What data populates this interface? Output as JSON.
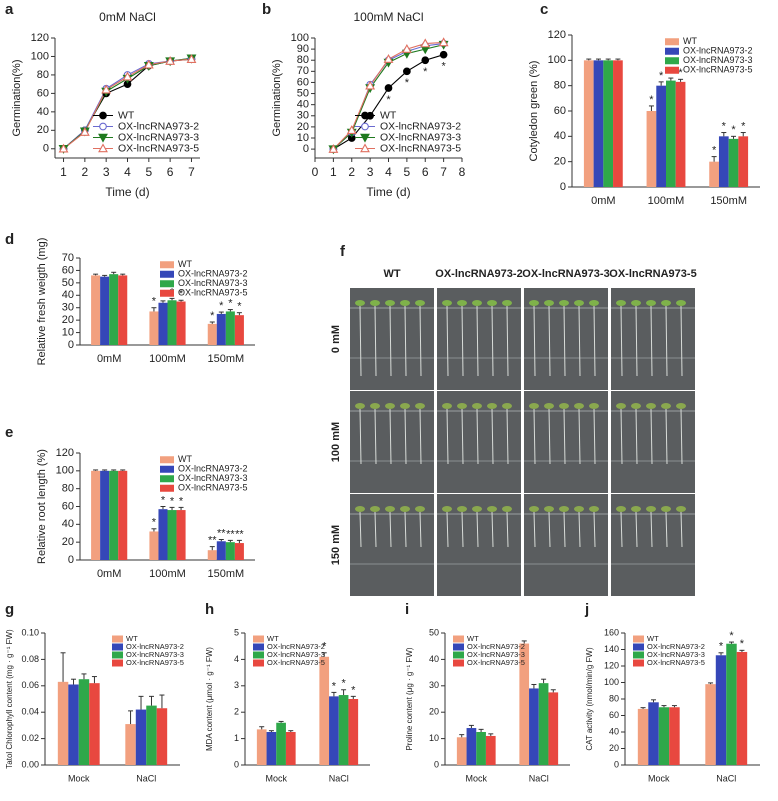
{
  "chart_data": [
    {
      "type": "line",
      "panel_label": "a",
      "title": "0mM NaCl",
      "xlabel": "Time (d)",
      "ylabel": "Germination(%)",
      "x": [
        1,
        2,
        3,
        4,
        5,
        6,
        7
      ],
      "xlim": [
        0.6,
        7.4
      ],
      "xticks": [
        1,
        2,
        3,
        4,
        5,
        6,
        7
      ],
      "ylim": [
        -10,
        120
      ],
      "yticks": [
        0,
        20,
        40,
        60,
        80,
        100,
        120
      ],
      "legend": "lower right",
      "series": [
        {
          "name": "WT",
          "color": "#000000",
          "marker": "circle-filled",
          "values": [
            0,
            20,
            60,
            70,
            90,
            95,
            97
          ]
        },
        {
          "name": "OX-lncRNA973-2",
          "color": "#6a6ad0",
          "marker": "circle-open",
          "values": [
            0,
            20,
            65,
            80,
            92,
            95,
            98
          ]
        },
        {
          "name": "OX-lncRNA973-3",
          "color": "#1f7a1f",
          "marker": "triangle-down-filled",
          "values": [
            0,
            19,
            62,
            76,
            90,
            95,
            98
          ]
        },
        {
          "name": "OX-lncRNA973-5",
          "color": "#e07060",
          "marker": "triangle-up-open",
          "values": [
            0,
            18,
            64,
            78,
            91,
            95,
            97
          ]
        }
      ]
    },
    {
      "type": "line",
      "panel_label": "b",
      "title": "100mM NaCl",
      "xlabel": "Time (d)",
      "ylabel": "Germination(%)",
      "x": [
        1,
        2,
        3,
        4,
        5,
        6,
        7
      ],
      "xlim": [
        0,
        8
      ],
      "xticks": [
        0,
        1,
        2,
        3,
        4,
        5,
        6,
        7,
        8
      ],
      "ylim": [
        -8,
        100
      ],
      "yticks": [
        0,
        10,
        20,
        30,
        40,
        50,
        60,
        70,
        80,
        90,
        100
      ],
      "legend": "lower right",
      "series": [
        {
          "name": "WT",
          "color": "#000000",
          "marker": "circle-filled",
          "values": [
            0,
            10,
            30,
            55,
            70,
            80,
            85
          ],
          "annotations": [
            null,
            null,
            null,
            "*",
            "*",
            "*",
            "*"
          ]
        },
        {
          "name": "OX-lncRNA973-2",
          "color": "#6a6ad0",
          "marker": "circle-open",
          "values": [
            0,
            15,
            58,
            80,
            88,
            93,
            95
          ]
        },
        {
          "name": "OX-lncRNA973-3",
          "color": "#1f7a1f",
          "marker": "triangle-down-filled",
          "values": [
            0,
            15,
            55,
            78,
            86,
            90,
            94
          ]
        },
        {
          "name": "OX-lncRNA973-5",
          "color": "#e07060",
          "marker": "triangle-up-open",
          "values": [
            0,
            17,
            57,
            81,
            90,
            95,
            96
          ]
        }
      ]
    },
    {
      "type": "bar",
      "panel_label": "c",
      "ylabel": "Cotyledon green (%)",
      "categories": [
        "0mM",
        "100mM",
        "150mM"
      ],
      "ylim": [
        0,
        120
      ],
      "yticks": [
        0,
        20,
        40,
        60,
        80,
        100,
        120
      ],
      "legend": "upper right",
      "series": [
        {
          "name": "WT",
          "color": "#f2a07f",
          "values": [
            100,
            60,
            20
          ],
          "errors": [
            1,
            4,
            4
          ],
          "annotations": [
            null,
            "*",
            "*"
          ]
        },
        {
          "name": "OX-lncRNA973-2",
          "color": "#3547b8",
          "values": [
            100,
            80,
            40
          ],
          "errors": [
            1,
            3,
            3
          ],
          "annotations": [
            null,
            "*",
            "*"
          ]
        },
        {
          "name": "OX-lncRNA973-3",
          "color": "#2fa84a",
          "values": [
            100,
            84,
            38
          ],
          "errors": [
            1,
            2,
            2
          ],
          "annotations": [
            null,
            "*",
            "*"
          ]
        },
        {
          "name": "OX-lncRNA973-5",
          "color": "#e8483f",
          "values": [
            100,
            83,
            40
          ],
          "errors": [
            1,
            2,
            3
          ],
          "annotations": [
            null,
            "*",
            "*"
          ]
        }
      ]
    },
    {
      "type": "bar",
      "panel_label": "d",
      "ylabel": "Relative fresh weigth (mg)",
      "categories": [
        "0mM",
        "100mM",
        "150mM"
      ],
      "ylim": [
        0,
        70
      ],
      "yticks": [
        0,
        10,
        20,
        30,
        40,
        50,
        60,
        70
      ],
      "legend": "upper right",
      "series": [
        {
          "name": "WT",
          "color": "#f2a07f",
          "values": [
            56,
            27,
            17
          ],
          "errors": [
            1,
            3,
            1.5
          ],
          "annotations": [
            null,
            "*",
            "*"
          ]
        },
        {
          "name": "OX-lncRNA973-2",
          "color": "#3547b8",
          "values": [
            55,
            34,
            25
          ],
          "errors": [
            1,
            1.5,
            1.5
          ],
          "annotations": [
            null,
            "*",
            "*"
          ]
        },
        {
          "name": "OX-lncRNA973-3",
          "color": "#2fa84a",
          "values": [
            57,
            36,
            27
          ],
          "errors": [
            1.5,
            1.5,
            1.5
          ],
          "annotations": [
            null,
            "*",
            "*"
          ]
        },
        {
          "name": "OX-lncRNA973-5",
          "color": "#e8483f",
          "values": [
            56,
            35,
            24
          ],
          "errors": [
            1,
            1,
            2
          ],
          "annotations": [
            null,
            "*",
            "*"
          ]
        }
      ]
    },
    {
      "type": "bar",
      "panel_label": "e",
      "ylabel": "Relative root length (%)",
      "categories": [
        "0mM",
        "100mM",
        "150mM"
      ],
      "ylim": [
        0,
        120
      ],
      "yticks": [
        0,
        20,
        40,
        60,
        80,
        100,
        120
      ],
      "legend": "upper right",
      "series": [
        {
          "name": "WT",
          "color": "#f2a07f",
          "values": [
            100,
            32,
            11
          ],
          "errors": [
            1,
            3,
            4
          ],
          "annotations": [
            null,
            "*",
            "**"
          ]
        },
        {
          "name": "OX-lncRNA973-2",
          "color": "#3547b8",
          "values": [
            100,
            57,
            21
          ],
          "errors": [
            1,
            3,
            2
          ],
          "annotations": [
            null,
            "*",
            "**"
          ]
        },
        {
          "name": "OX-lncRNA973-3",
          "color": "#2fa84a",
          "values": [
            100,
            56,
            20
          ],
          "errors": [
            1,
            3,
            2
          ],
          "annotations": [
            null,
            "*",
            "**"
          ]
        },
        {
          "name": "OX-lncRNA973-5",
          "color": "#e8483f",
          "values": [
            100,
            56,
            19
          ],
          "errors": [
            1,
            3,
            3
          ],
          "annotations": [
            null,
            "*",
            "**"
          ]
        }
      ]
    },
    {
      "type": "bar",
      "panel_label": "g",
      "ylabel": "Tatol Chlorophyll content (mg · g⁻¹ FW)",
      "categories": [
        "Mock",
        "NaCl"
      ],
      "ylim": [
        0,
        0.1
      ],
      "yticks": [
        {
          "value": 0,
          "label": "0.00"
        },
        {
          "value": 0.02,
          "label": "0.02"
        },
        {
          "value": 0.04,
          "label": "0.04"
        },
        {
          "value": 0.06,
          "label": "0.06"
        },
        {
          "value": 0.08,
          "label": "0.08"
        },
        {
          "value": 0.1,
          "label": "0.10"
        }
      ],
      "legend": "upper right",
      "series": [
        {
          "name": "WT",
          "color": "#f2a07f",
          "values": [
            0.063,
            0.031
          ],
          "errors": [
            0.022,
            0.01
          ]
        },
        {
          "name": "OX-lncRNA973-2",
          "color": "#3547b8",
          "values": [
            0.061,
            0.042
          ],
          "errors": [
            0.004,
            0.01
          ]
        },
        {
          "name": "OX-lncRNA973-3",
          "color": "#2fa84a",
          "values": [
            0.065,
            0.045
          ],
          "errors": [
            0.004,
            0.007
          ]
        },
        {
          "name": "OX-lncRNA973-5",
          "color": "#e8483f",
          "values": [
            0.062,
            0.043
          ],
          "errors": [
            0.005,
            0.01
          ]
        }
      ]
    },
    {
      "type": "bar",
      "panel_label": "h",
      "ylabel": "MDA content (μmol · g⁻¹ FW)",
      "categories": [
        "Mock",
        "NaCl"
      ],
      "ylim": [
        0,
        5
      ],
      "yticks": [
        0,
        1,
        2,
        3,
        4,
        5
      ],
      "legend": "upper left",
      "series": [
        {
          "name": "WT",
          "color": "#f2a07f",
          "values": [
            1.35,
            4.1
          ],
          "errors": [
            0.1,
            0.15
          ],
          "annotations": [
            null,
            "*"
          ]
        },
        {
          "name": "OX-lncRNA973-2",
          "color": "#3547b8",
          "values": [
            1.25,
            2.6
          ],
          "errors": [
            0.05,
            0.15
          ],
          "annotations": [
            null,
            "*"
          ]
        },
        {
          "name": "OX-lncRNA973-3",
          "color": "#2fa84a",
          "values": [
            1.6,
            2.65
          ],
          "errors": [
            0.05,
            0.2
          ],
          "annotations": [
            null,
            "*"
          ]
        },
        {
          "name": "OX-lncRNA973-5",
          "color": "#e8483f",
          "values": [
            1.25,
            2.5
          ],
          "errors": [
            0.05,
            0.1
          ],
          "annotations": [
            null,
            "*"
          ]
        }
      ]
    },
    {
      "type": "bar",
      "panel_label": "i",
      "ylabel": "Proline content (μg · g⁻¹ FW)",
      "categories": [
        "Mock",
        "NaCl"
      ],
      "ylim": [
        0,
        50
      ],
      "yticks": [
        0,
        10,
        20,
        30,
        40,
        50
      ],
      "legend": "upper left",
      "series": [
        {
          "name": "WT",
          "color": "#f2a07f",
          "values": [
            10.5,
            46
          ],
          "errors": [
            1,
            1
          ]
        },
        {
          "name": "OX-lncRNA973-2",
          "color": "#3547b8",
          "values": [
            14,
            29
          ],
          "errors": [
            1,
            1.5
          ]
        },
        {
          "name": "OX-lncRNA973-3",
          "color": "#2fa84a",
          "values": [
            12.5,
            31
          ],
          "errors": [
            1,
            1.5
          ]
        },
        {
          "name": "OX-lncRNA973-5",
          "color": "#e8483f",
          "values": [
            11,
            27.5
          ],
          "errors": [
            0.8,
            1
          ]
        }
      ]
    },
    {
      "type": "bar",
      "panel_label": "j",
      "ylabel": "CAT activity (nmol/min/g FW)",
      "categories": [
        "Mock",
        "NaCl"
      ],
      "ylim": [
        0,
        160
      ],
      "yticks": [
        0,
        20,
        40,
        60,
        80,
        100,
        120,
        140,
        160
      ],
      "legend": "upper left",
      "series": [
        {
          "name": "WT",
          "color": "#f2a07f",
          "values": [
            68,
            98
          ],
          "errors": [
            1.5,
            1.5
          ]
        },
        {
          "name": "OX-lncRNA973-2",
          "color": "#3547b8",
          "values": [
            76,
            133
          ],
          "errors": [
            3,
            3
          ],
          "annotations": [
            null,
            "*"
          ]
        },
        {
          "name": "OX-lncRNA973-3",
          "color": "#2fa84a",
          "values": [
            70,
            147
          ],
          "errors": [
            2,
            2
          ],
          "annotations": [
            null,
            "*"
          ]
        },
        {
          "name": "OX-lncRNA973-5",
          "color": "#e8483f",
          "values": [
            70,
            137
          ],
          "errors": [
            2,
            2
          ],
          "annotations": [
            null,
            "*"
          ]
        }
      ]
    }
  ],
  "photo_panel": {
    "panel_label": "f",
    "columns": [
      "WT",
      "OX-lncRNA973-2",
      "OX-lncRNA973-3",
      "OX-lncRNA973-5"
    ],
    "rows": [
      "0 mM",
      "100 mM",
      "150 mM"
    ]
  }
}
